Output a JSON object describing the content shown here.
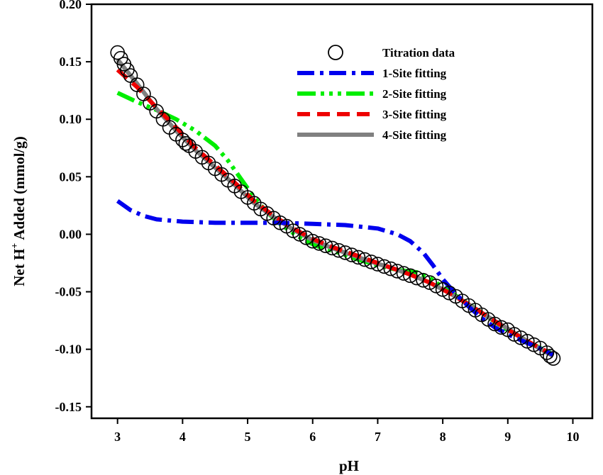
{
  "chart_data": {
    "type": "line",
    "xlabel": "pH",
    "ylabel_main": "Net H",
    "ylabel_sup": "+",
    "ylabel_rest": " Added (mmol/g)",
    "xlim": [
      2.6,
      10.3
    ],
    "ylim": [
      -0.16,
      0.2
    ],
    "x_ticks": [
      3,
      4,
      5,
      6,
      7,
      8,
      9,
      10
    ],
    "x_tick_labels": [
      "3",
      "4",
      "5",
      "6",
      "7",
      "8",
      "9",
      "10"
    ],
    "y_ticks": [
      0.2,
      0.15,
      0.1,
      0.05,
      0.0,
      -0.05,
      -0.1,
      -0.15
    ],
    "y_tick_labels": [
      "0.20",
      "0.15",
      "0.10",
      "0.05",
      "0.00",
      "-0.05",
      "-0.10",
      "-0.15"
    ],
    "grid": false,
    "legend_position": "top-right",
    "scatter": {
      "name": "Titration data",
      "color": "#000000",
      "x": [
        3.0,
        3.05,
        3.1,
        3.15,
        3.2,
        3.3,
        3.4,
        3.5,
        3.6,
        3.7,
        3.8,
        3.9,
        4.0,
        4.05,
        4.1,
        4.2,
        4.3,
        4.4,
        4.5,
        4.6,
        4.7,
        4.8,
        4.9,
        5.0,
        5.1,
        5.2,
        5.3,
        5.4,
        5.5,
        5.6,
        5.7,
        5.8,
        5.9,
        6.0,
        6.1,
        6.2,
        6.3,
        6.4,
        6.5,
        6.6,
        6.7,
        6.8,
        6.9,
        7.0,
        7.1,
        7.2,
        7.3,
        7.4,
        7.5,
        7.6,
        7.7,
        7.8,
        7.9,
        8.0,
        8.1,
        8.2,
        8.3,
        8.4,
        8.5,
        8.6,
        8.7,
        8.8,
        8.9,
        9.0,
        9.1,
        9.2,
        9.3,
        9.4,
        9.5,
        9.6,
        9.65,
        9.7
      ],
      "y": [
        0.158,
        0.153,
        0.148,
        0.143,
        0.138,
        0.13,
        0.122,
        0.114,
        0.107,
        0.1,
        0.093,
        0.087,
        0.082,
        0.079,
        0.077,
        0.072,
        0.067,
        0.062,
        0.057,
        0.052,
        0.047,
        0.042,
        0.037,
        0.032,
        0.027,
        0.022,
        0.018,
        0.014,
        0.01,
        0.007,
        0.003,
        0.0,
        -0.003,
        -0.006,
        -0.008,
        -0.01,
        -0.012,
        -0.014,
        -0.016,
        -0.018,
        -0.02,
        -0.022,
        -0.024,
        -0.026,
        -0.028,
        -0.03,
        -0.032,
        -0.034,
        -0.036,
        -0.038,
        -0.04,
        -0.042,
        -0.045,
        -0.048,
        -0.051,
        -0.054,
        -0.058,
        -0.062,
        -0.066,
        -0.07,
        -0.074,
        -0.078,
        -0.081,
        -0.083,
        -0.087,
        -0.09,
        -0.093,
        -0.096,
        -0.099,
        -0.103,
        -0.106,
        -0.108
      ]
    },
    "series": [
      {
        "name": "2-Site fitting",
        "color": "#00ee00",
        "dash": "26 7 5 7 5 7 5 7",
        "x": [
          3.0,
          3.3,
          3.6,
          3.9,
          4.2,
          4.5,
          4.7,
          4.9,
          5.1,
          5.3,
          5.5,
          5.7,
          5.9,
          6.1,
          6.4,
          6.7,
          7.0,
          7.3,
          7.6,
          7.8,
          8.0,
          8.3,
          8.6,
          8.9,
          9.2,
          9.5,
          9.7
        ],
        "y": [
          0.123,
          0.115,
          0.108,
          0.1,
          0.09,
          0.077,
          0.064,
          0.048,
          0.032,
          0.019,
          0.009,
          0.001,
          -0.006,
          -0.011,
          -0.016,
          -0.022,
          -0.027,
          -0.031,
          -0.033,
          -0.038,
          -0.046,
          -0.057,
          -0.068,
          -0.08,
          -0.09,
          -0.099,
          -0.104
        ]
      },
      {
        "name": "4-Site fitting",
        "color": "#808080",
        "dash": "",
        "x": [
          3.0,
          3.3,
          3.6,
          3.9,
          4.2,
          4.5,
          4.8,
          5.1,
          5.4,
          5.7,
          6.0,
          6.3,
          6.6,
          6.9,
          7.2,
          7.5,
          7.8,
          8.1,
          8.4,
          8.7,
          9.0,
          9.3,
          9.6,
          9.7
        ],
        "y": [
          0.152,
          0.131,
          0.109,
          0.09,
          0.073,
          0.058,
          0.043,
          0.027,
          0.015,
          0.004,
          -0.005,
          -0.012,
          -0.018,
          -0.024,
          -0.029,
          -0.035,
          -0.042,
          -0.051,
          -0.061,
          -0.072,
          -0.082,
          -0.093,
          -0.103,
          -0.106
        ]
      },
      {
        "name": "3-Site fitting",
        "color": "#ee0000",
        "dash": "18 10",
        "x": [
          3.0,
          3.3,
          3.6,
          3.9,
          4.2,
          4.5,
          4.8,
          5.1,
          5.4,
          5.7,
          6.0,
          6.3,
          6.6,
          6.9,
          7.2,
          7.5,
          7.8,
          8.1,
          8.4,
          8.7,
          9.0,
          9.3,
          9.6,
          9.7
        ],
        "y": [
          0.143,
          0.128,
          0.11,
          0.093,
          0.075,
          0.06,
          0.045,
          0.029,
          0.016,
          0.005,
          -0.004,
          -0.011,
          -0.017,
          -0.023,
          -0.029,
          -0.035,
          -0.042,
          -0.051,
          -0.061,
          -0.072,
          -0.083,
          -0.093,
          -0.102,
          -0.105
        ]
      },
      {
        "name": "1-Site fitting",
        "color": "#0000ee",
        "dash": "24 8 5 8",
        "x": [
          3.0,
          3.2,
          3.4,
          3.6,
          3.8,
          4.0,
          4.5,
          5.0,
          5.5,
          6.0,
          6.5,
          7.0,
          7.3,
          7.5,
          7.7,
          7.85,
          8.0,
          8.2,
          8.4,
          8.6,
          8.8,
          9.0,
          9.2,
          9.4,
          9.6,
          9.7
        ],
        "y": [
          0.029,
          0.021,
          0.016,
          0.013,
          0.012,
          0.011,
          0.01,
          0.01,
          0.01,
          0.009,
          0.008,
          0.005,
          0.0,
          -0.006,
          -0.016,
          -0.027,
          -0.039,
          -0.052,
          -0.063,
          -0.073,
          -0.081,
          -0.087,
          -0.092,
          -0.097,
          -0.102,
          -0.105
        ]
      }
    ],
    "legend": [
      {
        "label": "Titration data",
        "kind": "marker",
        "color": "#000000",
        "dash": ""
      },
      {
        "label": "1-Site fitting",
        "kind": "line",
        "color": "#0000ee",
        "dash": "24 8 5 8"
      },
      {
        "label": "2-Site fitting",
        "kind": "line",
        "color": "#00ee00",
        "dash": "26 7 5 7 5 7 5 7"
      },
      {
        "label": "3-Site fitting",
        "kind": "line",
        "color": "#ee0000",
        "dash": "18 10"
      },
      {
        "label": "4-Site fitting",
        "kind": "line",
        "color": "#808080",
        "dash": ""
      }
    ]
  }
}
